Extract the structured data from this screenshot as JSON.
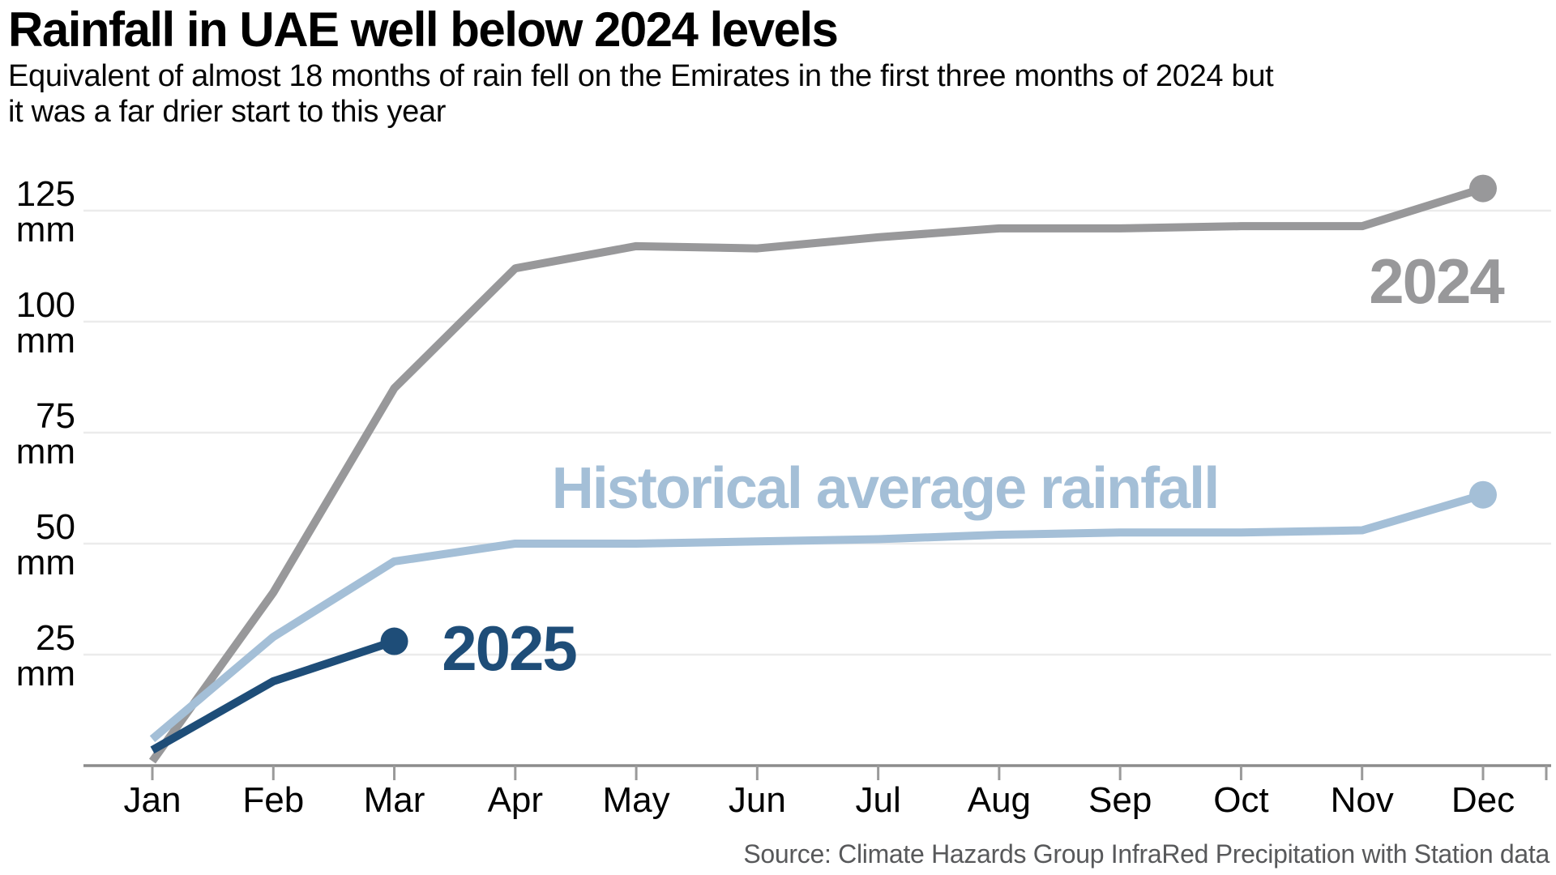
{
  "header": {
    "title": "Rainfall in UAE well below 2024 levels",
    "subtitle_lines": [
      "Equivalent of almost 18 months of rain fell on the Emirates in the first three months of 2024 but",
      "it was a far drier start to this year"
    ]
  },
  "chart_data": {
    "type": "line",
    "categories": [
      "Jan",
      "Feb",
      "Mar",
      "Apr",
      "May",
      "Jun",
      "Jul",
      "Aug",
      "Sep",
      "Oct",
      "Nov",
      "Dec"
    ],
    "series": [
      {
        "name": "2024",
        "color": "#98989a",
        "values": [
          1,
          39,
          85,
          112,
          117,
          116.5,
          119,
          121,
          121,
          121.5,
          121.5,
          130
        ],
        "endpoint_dot": true
      },
      {
        "name": "Historical average rainfall",
        "color": "#a4bfd7",
        "values": [
          6,
          29,
          46,
          50,
          50,
          50.5,
          51,
          52,
          52.5,
          52.5,
          53,
          61
        ],
        "endpoint_dot": true
      },
      {
        "name": "2025",
        "color": "#1e4d78",
        "values": [
          3.5,
          19,
          28
        ],
        "endpoint_dot": true
      }
    ],
    "yticks": [
      25,
      50,
      75,
      100,
      125
    ],
    "ytick_unit": "mm",
    "ylim": [
      0,
      131
    ],
    "grid": true,
    "grid_color": "#ebebeb",
    "axis_color": "#8c8c8c",
    "tick_color": "#9a9a9a",
    "xlabel": "",
    "ylabel": "",
    "legend_position": "inline-labels"
  },
  "source": "Source: Climate Hazards Group InfraRed Precipitation with Station data"
}
